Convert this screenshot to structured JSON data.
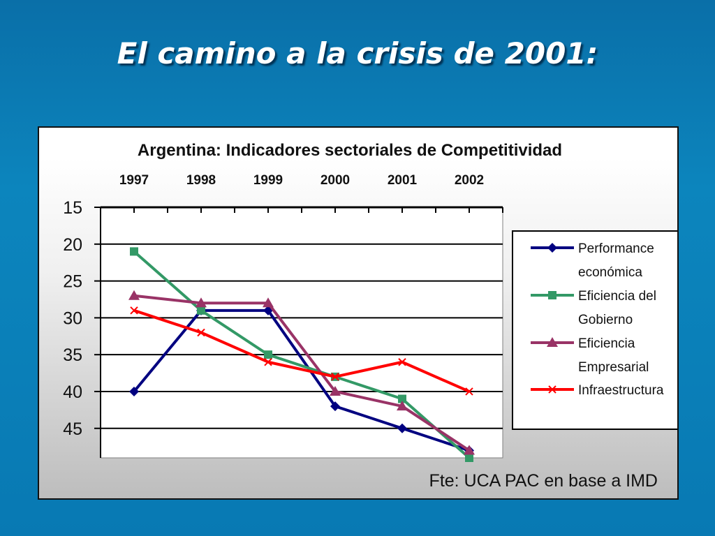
{
  "slide": {
    "title": "El camino a la crisis de 2001:"
  },
  "chart_data": {
    "type": "line",
    "title": "Argentina: Indicadores sectoriales de Competitividad",
    "categories": [
      "1997",
      "1998",
      "1999",
      "2000",
      "2001",
      "2002"
    ],
    "y_axis": {
      "ticks": [
        15,
        20,
        25,
        30,
        35,
        40,
        45
      ],
      "range": [
        15,
        49
      ],
      "reversed": true,
      "position": "left"
    },
    "x_axis": {
      "position": "top"
    },
    "grid": {
      "horizontal": true,
      "vertical": false
    },
    "legend_position": "right",
    "series": [
      {
        "name": "Performance económica",
        "name_lines": [
          "Performance",
          "económica"
        ],
        "color": "#000080",
        "marker": "diamond",
        "values": [
          40,
          29,
          29,
          42,
          45,
          48
        ]
      },
      {
        "name": "Eficiencia del Gobierno",
        "name_lines": [
          "Eficiencia del",
          "Gobierno"
        ],
        "color": "#339966",
        "marker": "square",
        "values": [
          21,
          29,
          35,
          38,
          41,
          49
        ]
      },
      {
        "name": "Eficiencia Empresarial",
        "name_lines": [
          "Eficiencia",
          "Empresarial"
        ],
        "color": "#993366",
        "marker": "triangle",
        "values": [
          27,
          28,
          28,
          40,
          42,
          48
        ]
      },
      {
        "name": "Infraestructura",
        "name_lines": [
          "Infraestructura"
        ],
        "color": "#ff0000",
        "marker": "x",
        "values": [
          29,
          32,
          36,
          38,
          36,
          40
        ]
      }
    ],
    "source": "Fte: UCA PAC en base a IMD"
  }
}
